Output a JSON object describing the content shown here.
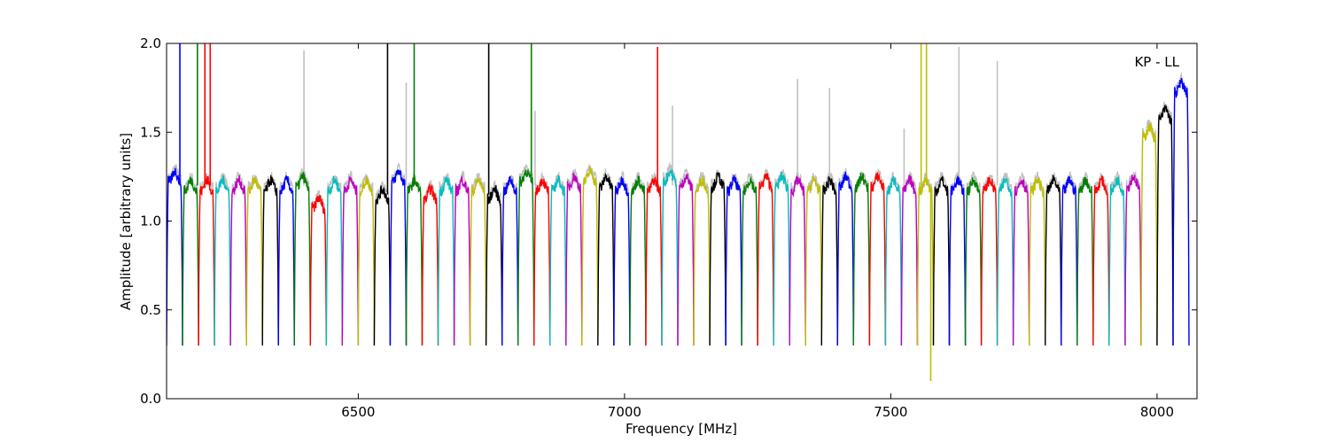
{
  "chart_data": {
    "type": "line",
    "annotation": "KP - LL",
    "xlabel": "Frequency [MHz]",
    "ylabel": "Amplitude [arbitrary units]",
    "xlim": [
      6140,
      8075
    ],
    "ylim": [
      0.0,
      2.0
    ],
    "xticks": [
      {
        "value": 6500,
        "label": "6500"
      },
      {
        "value": 7000,
        "label": "7000"
      },
      {
        "value": 7500,
        "label": "7500"
      },
      {
        "value": 8000,
        "label": "8000"
      }
    ],
    "yticks": [
      {
        "value": 0.0,
        "label": "0.0"
      },
      {
        "value": 0.5,
        "label": "0.5"
      },
      {
        "value": 1.0,
        "label": "1.0"
      },
      {
        "value": 1.5,
        "label": "1.5"
      },
      {
        "value": 2.0,
        "label": "2.0"
      }
    ],
    "grid": false,
    "color_cycle": [
      "#0000ff",
      "#008000",
      "#ff0000",
      "#00bfbf",
      "#bf00bf",
      "#bfbf00",
      "#000000"
    ],
    "background_color": "#c0c0c0",
    "channel_width_mhz": 30,
    "channel_starts_mhz": [
      6140,
      6170,
      6200,
      6230,
      6260,
      6290,
      6320,
      6350,
      6380,
      6410,
      6440,
      6470,
      6500,
      6530,
      6560,
      6590,
      6620,
      6650,
      6680,
      6710,
      6740,
      6770,
      6800,
      6830,
      6860,
      6890,
      6920,
      6950,
      6980,
      7010,
      7040,
      7070,
      7100,
      7130,
      7160,
      7190,
      7220,
      7250,
      7280,
      7310,
      7340,
      7370,
      7400,
      7430,
      7460,
      7490,
      7520,
      7550,
      7580,
      7610,
      7640,
      7670,
      7700,
      7730,
      7760,
      7790,
      7820,
      7850,
      7880,
      7910,
      7940,
      7970,
      8000,
      8030
    ],
    "channel_plateau_levels": [
      1.25,
      1.2,
      1.2,
      1.2,
      1.2,
      1.2,
      1.2,
      1.2,
      1.22,
      1.1,
      1.2,
      1.2,
      1.2,
      1.15,
      1.25,
      1.2,
      1.15,
      1.2,
      1.2,
      1.2,
      1.15,
      1.2,
      1.25,
      1.2,
      1.2,
      1.22,
      1.25,
      1.22,
      1.2,
      1.2,
      1.2,
      1.25,
      1.22,
      1.2,
      1.22,
      1.2,
      1.2,
      1.22,
      1.22,
      1.2,
      1.2,
      1.2,
      1.22,
      1.22,
      1.22,
      1.2,
      1.2,
      1.2,
      1.2,
      1.2,
      1.2,
      1.2,
      1.2,
      1.2,
      1.2,
      1.2,
      1.2,
      1.2,
      1.2,
      1.2,
      1.22,
      1.5,
      1.6,
      1.75
    ],
    "edge_minimum": 0.3,
    "spikes": [
      {
        "x": 6165,
        "y": 2.0
      },
      {
        "x": 6198,
        "y": 2.0
      },
      {
        "x": 6212,
        "y": 2.0
      },
      {
        "x": 6222,
        "y": 2.0
      },
      {
        "x": 6555,
        "y": 2.0
      },
      {
        "x": 6605,
        "y": 2.0
      },
      {
        "x": 6745,
        "y": 2.0
      },
      {
        "x": 6825,
        "y": 2.0
      },
      {
        "x": 7062,
        "y": 1.98
      },
      {
        "x": 7557,
        "y": 2.0
      },
      {
        "x": 7567,
        "y": 2.0
      },
      {
        "x": 7575,
        "y": 0.1
      },
      {
        "x": 8043,
        "y": 1.78
      }
    ],
    "gray_spikes": [
      {
        "x": 6398,
        "y": 1.96
      },
      {
        "x": 6590,
        "y": 1.78
      },
      {
        "x": 6832,
        "y": 1.62
      },
      {
        "x": 7090,
        "y": 1.65
      },
      {
        "x": 7325,
        "y": 1.8
      },
      {
        "x": 7385,
        "y": 1.75
      },
      {
        "x": 7525,
        "y": 1.52
      },
      {
        "x": 7628,
        "y": 1.98
      },
      {
        "x": 7700,
        "y": 1.9
      }
    ]
  }
}
